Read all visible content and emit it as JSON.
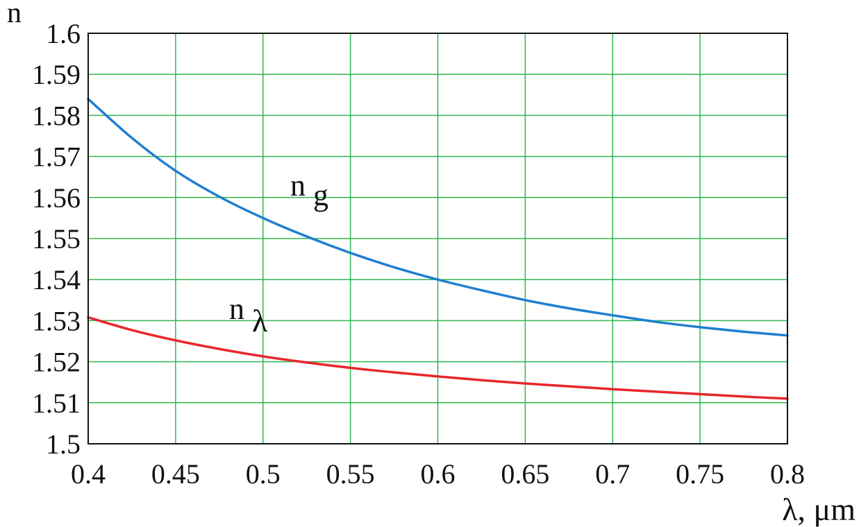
{
  "chart_data": {
    "type": "line",
    "xlabel": "λ, μm",
    "ylabel": "n",
    "xlim": [
      0.4,
      0.8
    ],
    "ylim": [
      1.5,
      1.6
    ],
    "xticks": [
      "0.4",
      "0.45",
      "0.5",
      "0.55",
      "0.6",
      "0.65",
      "0.7",
      "0.75",
      "0.8"
    ],
    "yticks": [
      "1.5",
      "1.51",
      "1.52",
      "1.53",
      "1.54",
      "1.55",
      "1.56",
      "1.57",
      "1.58",
      "1.59",
      "1.6"
    ],
    "grid": true,
    "legend": "none",
    "series": [
      {
        "name": "n_g",
        "label_main": "n",
        "label_sub": "g",
        "color": "#1f7fd0",
        "x": [
          0.4,
          0.425,
          0.45,
          0.475,
          0.5,
          0.525,
          0.55,
          0.575,
          0.6,
          0.625,
          0.65,
          0.675,
          0.7,
          0.725,
          0.75,
          0.775,
          0.8
        ],
        "y": [
          1.584,
          1.5745,
          1.5665,
          1.5602,
          1.555,
          1.5505,
          1.5465,
          1.543,
          1.54,
          1.5374,
          1.535,
          1.533,
          1.5313,
          1.5297,
          1.5284,
          1.5273,
          1.5264
        ]
      },
      {
        "name": "n_λ",
        "label_main": "n",
        "label_sub": "λ",
        "color": "#e8262b",
        "x": [
          0.4,
          0.425,
          0.45,
          0.475,
          0.5,
          0.525,
          0.55,
          0.575,
          0.6,
          0.625,
          0.65,
          0.675,
          0.7,
          0.725,
          0.75,
          0.775,
          0.8
        ],
        "y": [
          1.5308,
          1.5277,
          1.5252,
          1.5231,
          1.5213,
          1.5198,
          1.5185,
          1.5174,
          1.5164,
          1.5155,
          1.5147,
          1.514,
          1.5133,
          1.5127,
          1.5121,
          1.5115,
          1.511
        ]
      }
    ]
  },
  "colors": {
    "grid": "#2db84e",
    "frame": "#111111",
    "text": "#111111"
  }
}
